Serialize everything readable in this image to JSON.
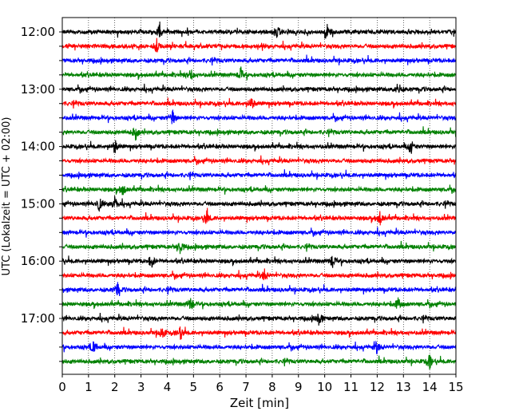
{
  "chart_data": {
    "type": "line",
    "subtype": "helicorder-seismogram",
    "xlabel": "Zeit  [min]",
    "ylabel": "UTC (Lokalzeit = UTC + 02:00)",
    "xlim": [
      0,
      15
    ],
    "xticks": [
      0,
      1,
      2,
      3,
      4,
      5,
      6,
      7,
      8,
      9,
      10,
      11,
      12,
      13,
      14,
      15
    ],
    "x_gridlines": "dotted vertical at each minute",
    "trace_interval_minutes": 15,
    "hour_labels": [
      "12:00",
      "13:00",
      "14:00",
      "15:00",
      "16:00",
      "17:00"
    ],
    "traces": [
      {
        "start": "12:00",
        "color": "#000000",
        "events_min": [
          3.7,
          8.2,
          10.1
        ]
      },
      {
        "start": "12:15",
        "color": "#ff0000",
        "events_min": [
          3.6
        ]
      },
      {
        "start": "12:30",
        "color": "#0000ff",
        "events_min": []
      },
      {
        "start": "12:45",
        "color": "#008000",
        "events_min": [
          4.9,
          6.8
        ]
      },
      {
        "start": "13:00",
        "color": "#000000",
        "events_min": [
          12.8
        ]
      },
      {
        "start": "13:15",
        "color": "#ff0000",
        "events_min": [
          7.2
        ]
      },
      {
        "start": "13:30",
        "color": "#0000ff",
        "events_min": [
          4.2
        ]
      },
      {
        "start": "13:45",
        "color": "#008000",
        "events_min": [
          2.8
        ]
      },
      {
        "start": "14:00",
        "color": "#000000",
        "events_min": [
          2.0,
          13.3
        ]
      },
      {
        "start": "14:15",
        "color": "#ff0000",
        "events_min": []
      },
      {
        "start": "14:30",
        "color": "#0000ff",
        "events_min": []
      },
      {
        "start": "14:45",
        "color": "#008000",
        "events_min": [
          2.3
        ]
      },
      {
        "start": "15:00",
        "color": "#000000",
        "events_min": [
          1.4,
          2.0
        ]
      },
      {
        "start": "15:15",
        "color": "#ff0000",
        "events_min": [
          5.5,
          12.1
        ]
      },
      {
        "start": "15:30",
        "color": "#0000ff",
        "events_min": []
      },
      {
        "start": "15:45",
        "color": "#008000",
        "events_min": [
          4.5
        ]
      },
      {
        "start": "16:00",
        "color": "#000000",
        "events_min": [
          3.4,
          10.3
        ]
      },
      {
        "start": "16:15",
        "color": "#ff0000",
        "events_min": [
          7.7
        ]
      },
      {
        "start": "16:30",
        "color": "#0000ff",
        "events_min": [
          2.1
        ]
      },
      {
        "start": "16:45",
        "color": "#008000",
        "events_min": [
          4.9,
          12.8
        ]
      },
      {
        "start": "17:00",
        "color": "#000000",
        "events_min": [
          9.8
        ]
      },
      {
        "start": "17:15",
        "color": "#ff0000",
        "events_min": [
          3.8,
          4.5
        ]
      },
      {
        "start": "17:30",
        "color": "#0000ff",
        "events_min": [
          1.2,
          12.0
        ]
      },
      {
        "start": "17:45",
        "color": "#008000",
        "events_min": [
          14.0
        ]
      }
    ]
  }
}
